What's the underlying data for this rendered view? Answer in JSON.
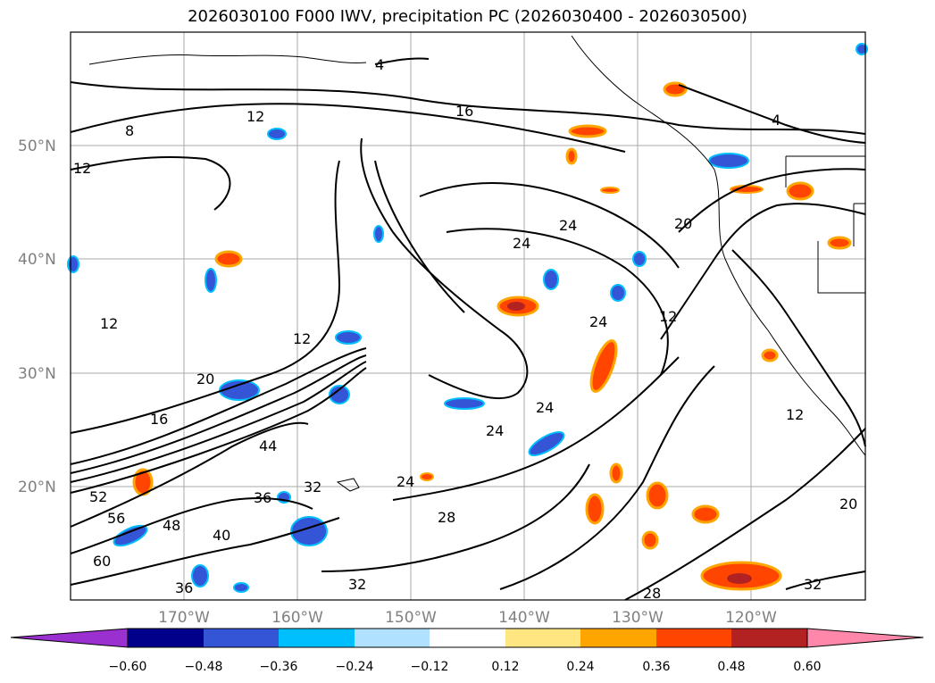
{
  "title": "2026030100 F000 IWV, precipitation PC (2026030400 - 2026030500)",
  "map": {
    "lat_labels": [
      "50°N",
      "40°N",
      "30°N",
      "20°N"
    ],
    "lon_labels": [
      "170°W",
      "160°W",
      "150°W",
      "140°W",
      "130°W",
      "120°W"
    ],
    "extent": {
      "lon_min": -180,
      "lon_max": -110,
      "lat_min": 10,
      "lat_max": 60
    },
    "contour_labels": [
      "4",
      "8",
      "12",
      "16",
      "20",
      "24",
      "28",
      "32",
      "36",
      "40",
      "44",
      "48",
      "52",
      "56",
      "60"
    ]
  },
  "colorbar": {
    "ticks": [
      "−0.60",
      "−0.48",
      "−0.36",
      "−0.24",
      "−0.12",
      "0.12",
      "0.24",
      "0.36",
      "0.48",
      "0.60"
    ],
    "colors": [
      "#9b30d0",
      "#00008b",
      "#3355d6",
      "#00bfff",
      "#b0e2ff",
      "#ffffff",
      "#ffe680",
      "#ffa500",
      "#ff4500",
      "#b22222",
      "#ff88aa"
    ]
  }
}
